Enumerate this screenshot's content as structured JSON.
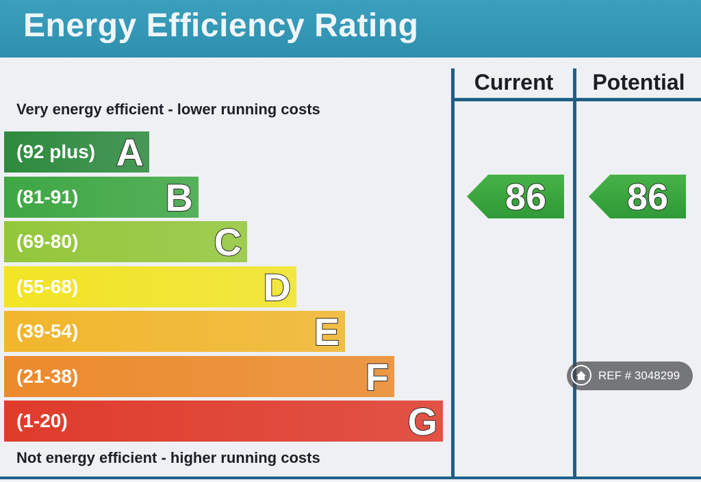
{
  "title": "Energy Efficiency Rating",
  "top_caption": "Very energy efficient - lower running costs",
  "bottom_caption": "Not energy efficient - higher running costs",
  "columns": {
    "current": "Current",
    "potential": "Potential"
  },
  "chart_data": {
    "type": "bar",
    "title": "Energy Efficiency Rating",
    "bands": [
      {
        "letter": "A",
        "range": "(92 plus)",
        "color": "#2e8a3e"
      },
      {
        "letter": "B",
        "range": "(81-91)",
        "color": "#3ea743"
      },
      {
        "letter": "C",
        "range": "(69-80)",
        "color": "#93c73a"
      },
      {
        "letter": "D",
        "range": "(55-68)",
        "color": "#f2e425"
      },
      {
        "letter": "E",
        "range": "(39-54)",
        "color": "#f1b62c"
      },
      {
        "letter": "F",
        "range": "(21-38)",
        "color": "#ec8a2c"
      },
      {
        "letter": "G",
        "range": "(1-20)",
        "color": "#df3b2b"
      }
    ],
    "current": 86,
    "potential": 86,
    "rating_band_color": "#3aa23f"
  },
  "watermark": {
    "text": "REF # 3048299",
    "icon": "home-icon"
  }
}
